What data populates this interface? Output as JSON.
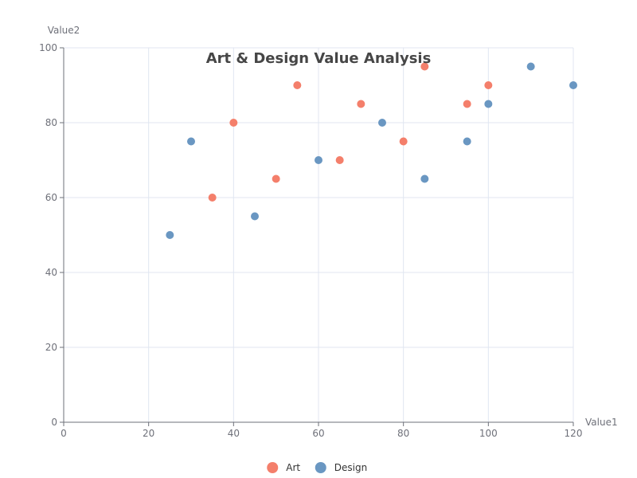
{
  "chart_data": {
    "type": "scatter",
    "title": "Art & Design Value Analysis",
    "xlabel": "Value1",
    "ylabel": "Value2",
    "xlim": [
      0,
      120
    ],
    "ylim": [
      0,
      100
    ],
    "x_ticks": [
      0,
      20,
      40,
      60,
      80,
      100,
      120
    ],
    "y_ticks": [
      0,
      20,
      40,
      60,
      80,
      100
    ],
    "grid": true,
    "legend_position": "bottom-center",
    "series": [
      {
        "name": "Art",
        "color": "#f47f6b",
        "points": [
          [
            35,
            60
          ],
          [
            40,
            80
          ],
          [
            50,
            65
          ],
          [
            55,
            90
          ],
          [
            65,
            70
          ],
          [
            70,
            85
          ],
          [
            80,
            75
          ],
          [
            85,
            95
          ],
          [
            95,
            85
          ],
          [
            100,
            90
          ]
        ]
      },
      {
        "name": "Design",
        "color": "#6a97c2",
        "points": [
          [
            25,
            50
          ],
          [
            30,
            75
          ],
          [
            45,
            55
          ],
          [
            60,
            70
          ],
          [
            75,
            80
          ],
          [
            85,
            65
          ],
          [
            95,
            75
          ],
          [
            100,
            85
          ],
          [
            110,
            95
          ],
          [
            120,
            90
          ]
        ]
      }
    ]
  }
}
